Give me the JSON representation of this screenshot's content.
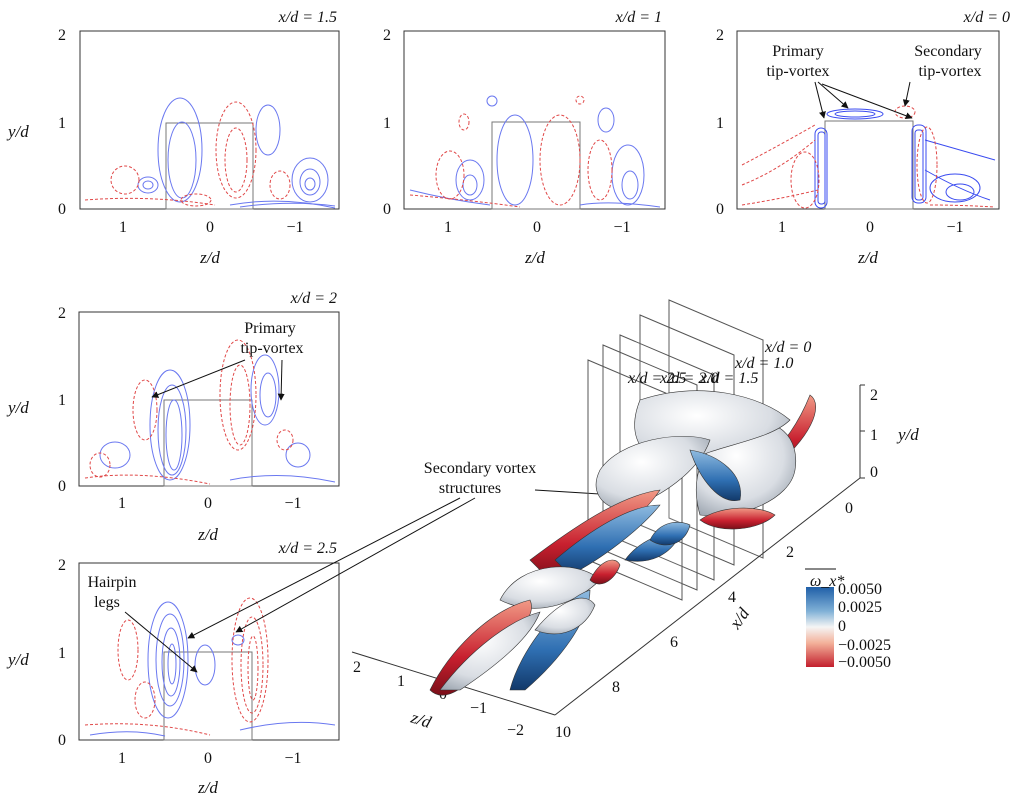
{
  "panels": [
    {
      "id": "p15",
      "title": "x/d = 1.5",
      "yticks": [
        "0",
        "1",
        "2"
      ],
      "xticks": [
        "1",
        "0",
        "−1"
      ],
      "ylabel": "y/d",
      "xlabel": "z/d"
    },
    {
      "id": "p1",
      "title": "x/d = 1",
      "yticks": [
        "0",
        "1",
        "2"
      ],
      "xticks": [
        "1",
        "0",
        "−1"
      ],
      "xlabel": "z/d"
    },
    {
      "id": "p0",
      "title": "x/d = 0",
      "yticks": [
        "0",
        "1",
        "2"
      ],
      "xticks": [
        "1",
        "0",
        "−1"
      ],
      "xlabel": "z/d"
    },
    {
      "id": "p2",
      "title": "x/d = 2",
      "yticks": [
        "0",
        "1",
        "2"
      ],
      "xticks": [
        "1",
        "0",
        "−1"
      ],
      "ylabel": "y/d",
      "xlabel": "z/d"
    },
    {
      "id": "p25",
      "title": "x/d = 2.5",
      "yticks": [
        "0",
        "1",
        "2"
      ],
      "xticks": [
        "1",
        "0",
        "−1"
      ],
      "ylabel": "y/d",
      "xlabel": "z/d"
    }
  ],
  "annotations": {
    "primary_tip_vortex_0": "Primary\ntip-vortex",
    "secondary_tip_vortex_0": "Secondary\ntip-vortex",
    "primary_tip_vortex_2": "Primary\ntip-vortex",
    "hairpin_legs": "Hairpin\nlegs",
    "secondary_vortex_structures": "Secondary vortex\nstructures"
  },
  "view3d": {
    "planes": [
      "x/d = 0",
      "x/d = 1.0",
      "x/d = 1.5",
      "x/d = 2.0",
      "x/d = 2.5"
    ],
    "x_axis_label": "x/d",
    "x_ticks": [
      "0",
      "2",
      "4",
      "6",
      "8",
      "10"
    ],
    "z_axis_label": "z/d",
    "z_ticks": [
      "2",
      "1",
      "0",
      "−1",
      "−2"
    ],
    "y_axis_label": "y/d",
    "y_ticks": [
      "0",
      "1",
      "2"
    ]
  },
  "colorbar": {
    "title": "ω_x*",
    "ticks": [
      "0.0050",
      "0.0025",
      "0",
      "−0.0025",
      "−0.0050"
    ],
    "colors": [
      "#2166ac",
      "#6aa3cf",
      "#f4f4f4",
      "#f0a58a",
      "#c8202f"
    ]
  }
}
